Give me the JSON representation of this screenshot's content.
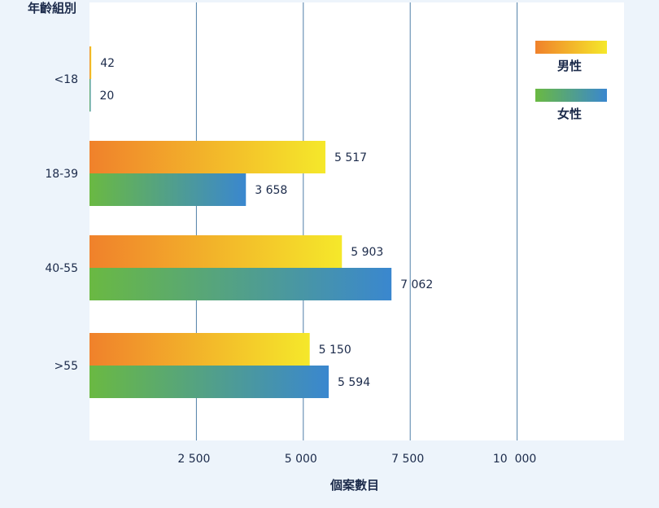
{
  "chart_data": {
    "type": "bar",
    "orientation": "horizontal",
    "title": "",
    "ylabel": "年齡組別",
    "xlabel": "個案數目",
    "categories": [
      "<18",
      "18-39",
      "40-55",
      ">55"
    ],
    "series": [
      {
        "name": "男性",
        "values": [
          42,
          5517,
          5903,
          5150
        ],
        "value_labels": [
          "42",
          "5 517",
          "5 903",
          "5 150"
        ],
        "gradient": [
          "#f0812b",
          "#f5e82a"
        ]
      },
      {
        "name": "女性",
        "values": [
          20,
          3658,
          7062,
          5594
        ],
        "value_labels": [
          "20",
          "3 658",
          "7 062",
          "5 594"
        ],
        "gradient": [
          "#6ab942",
          "#3a87cf"
        ]
      }
    ],
    "xticks": [
      2500,
      5000,
      7500,
      10000
    ],
    "xtick_labels": [
      "2 500",
      "5 000",
      "7 500",
      "10  000"
    ],
    "xlim": [
      0,
      12500
    ],
    "grid": true,
    "legend_position": "top-right",
    "colors": {
      "background": "#edf4fb",
      "plot_area": "#ffffff",
      "gridline": "#4f7fa8",
      "text": "#1b2a4a"
    }
  }
}
